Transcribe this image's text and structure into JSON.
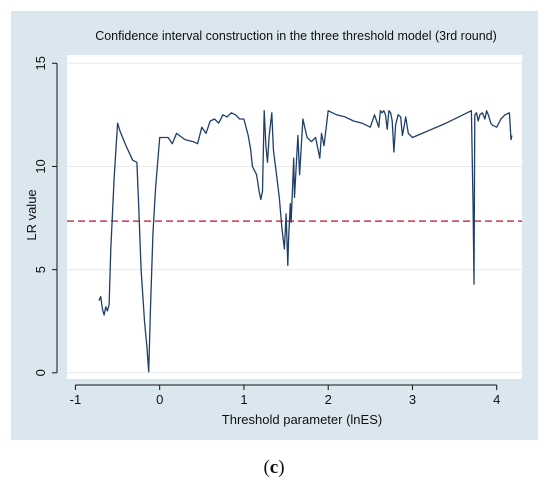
{
  "figure": {
    "panel_label_open": "(",
    "panel_label_letter": "c",
    "panel_label_close": ")"
  },
  "colors": {
    "outer_background": "#dbe7ee",
    "plot_background": "#ffffff",
    "line": "#1f3f66",
    "threshold": "#d8334a",
    "grid": "#eaeaea",
    "axis": "#111111"
  },
  "chart_data": {
    "type": "line",
    "title": "Confidence interval construction in the three threshold model (3rd round)",
    "xlabel": "Threshold parameter (lnES)",
    "ylabel": "LR value",
    "xlim": [
      -1.1,
      4.3
    ],
    "ylim": [
      -0.3,
      15.4
    ],
    "x_ticks": [
      -1,
      0,
      1,
      2,
      3,
      4
    ],
    "x_tick_labels": [
      "-1",
      "0",
      "1",
      "2",
      "3",
      "4"
    ],
    "y_ticks": [
      0,
      5,
      10,
      15
    ],
    "y_tick_labels": [
      "0",
      "5",
      "10",
      "15"
    ],
    "grid": "horizontal",
    "legend": "none",
    "critical_value": 7.35,
    "critical_value_style": "dashed",
    "series": [
      {
        "x": [
          -0.72,
          -0.7,
          -0.68,
          -0.66,
          -0.64,
          -0.62,
          -0.6,
          -0.58,
          -0.54,
          -0.5,
          -0.47,
          -0.4,
          -0.32,
          -0.27,
          -0.25,
          -0.22,
          -0.18,
          -0.15,
          -0.13,
          -0.11,
          -0.08,
          -0.05,
          0.0,
          0.1,
          0.15,
          0.2,
          0.3,
          0.4,
          0.45,
          0.5,
          0.55,
          0.6,
          0.65,
          0.7,
          0.75,
          0.8,
          0.85,
          0.9,
          0.95,
          1.0,
          1.05,
          1.08,
          1.1,
          1.15,
          1.18,
          1.2,
          1.22,
          1.24,
          1.26,
          1.28,
          1.3,
          1.33,
          1.35,
          1.38,
          1.42,
          1.45,
          1.48,
          1.5,
          1.52,
          1.53,
          1.55,
          1.56,
          1.58,
          1.59,
          1.6,
          1.62,
          1.64,
          1.66,
          1.7,
          1.75,
          1.8,
          1.85,
          1.9,
          1.92,
          1.95,
          2.0,
          2.05,
          2.1,
          2.2,
          2.3,
          2.4,
          2.5,
          2.55,
          2.6,
          2.62,
          2.64,
          2.66,
          2.68,
          2.7,
          2.72,
          2.74,
          2.76,
          2.78,
          2.8,
          2.83,
          2.86,
          2.88,
          2.9,
          2.92,
          2.95,
          3.0,
          3.4,
          3.7,
          3.72,
          3.73,
          3.74,
          3.76,
          3.78,
          3.8,
          3.83,
          3.86,
          3.88,
          3.9,
          3.93,
          3.95,
          4.0,
          4.05,
          4.1,
          4.15,
          4.17,
          4.18
        ],
        "y": [
          3.5,
          3.7,
          3.1,
          2.8,
          3.2,
          3.0,
          3.3,
          6.0,
          9.5,
          12.1,
          11.7,
          11.0,
          10.3,
          10.2,
          8.2,
          5.0,
          2.5,
          1.2,
          0.05,
          3.0,
          6.7,
          8.9,
          11.4,
          11.4,
          11.1,
          11.6,
          11.3,
          11.2,
          11.1,
          11.9,
          11.6,
          12.2,
          12.3,
          12.1,
          12.5,
          12.4,
          12.6,
          12.5,
          12.3,
          12.3,
          11.5,
          10.8,
          10.0,
          9.6,
          8.8,
          8.4,
          8.8,
          12.7,
          11.0,
          10.2,
          11.5,
          12.6,
          10.8,
          9.8,
          8.5,
          7.0,
          6.0,
          7.7,
          5.2,
          6.5,
          8.2,
          7.3,
          9.3,
          10.4,
          8.5,
          10.0,
          11.5,
          9.6,
          12.3,
          11.4,
          11.2,
          11.4,
          10.4,
          11.6,
          11.0,
          12.7,
          12.6,
          12.5,
          12.4,
          12.2,
          12.1,
          11.9,
          12.5,
          11.9,
          12.7,
          12.6,
          12.7,
          12.5,
          11.8,
          12.7,
          12.6,
          12.2,
          10.7,
          12.0,
          12.5,
          12.4,
          11.5,
          11.9,
          12.4,
          11.6,
          11.4,
          12.1,
          12.7,
          8.0,
          4.3,
          12.5,
          12.6,
          12.2,
          12.5,
          12.6,
          12.3,
          12.7,
          12.5,
          12.1,
          12.0,
          11.9,
          12.3,
          12.5,
          12.6,
          11.3,
          11.5
        ]
      }
    ]
  }
}
